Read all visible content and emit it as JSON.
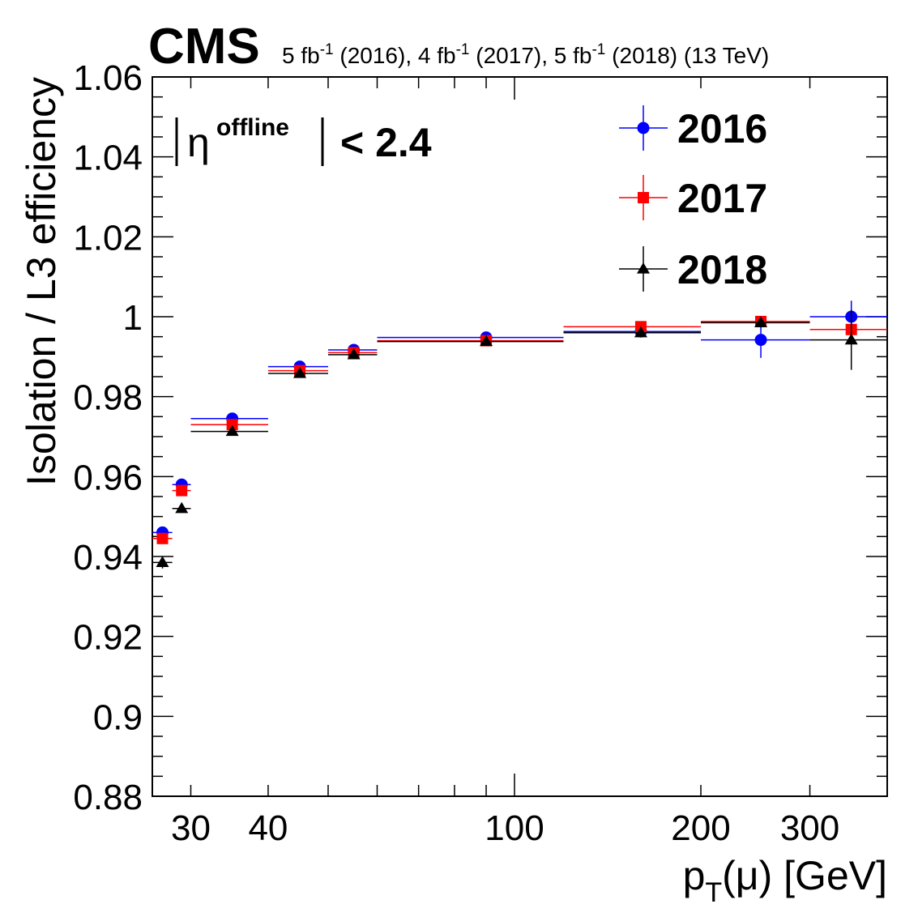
{
  "header": {
    "experiment": "CMS",
    "lumi_parts": [
      {
        "lumi": "5 fb",
        "year": " (2016), "
      },
      {
        "lumi": "4 fb",
        "year": " (2017), "
      },
      {
        "lumi": "5 fb",
        "year": " (2018) (13 TeV)"
      }
    ],
    "lumi_exp": "-1"
  },
  "annotation": {
    "symbol": "η",
    "superscript": "offline",
    "cut": "< 2.4"
  },
  "chart_data": {
    "type": "scatter",
    "xlabel": {
      "main": "p",
      "sub": "T",
      "rest": "(μ) [GeV]"
    },
    "ylabel": "Isolation / L3 efficiency",
    "xscale": "log",
    "xlim": [
      26,
      400
    ],
    "ylim": [
      0.88,
      1.06
    ],
    "x_tick_labels": [
      {
        "value": 30,
        "label": "30"
      },
      {
        "value": 40,
        "label": "40"
      },
      {
        "value": 100,
        "label": "100"
      },
      {
        "value": 200,
        "label": "200"
      },
      {
        "value": 300,
        "label": "300"
      }
    ],
    "y_tick_labels": [
      {
        "value": 0.88,
        "label": "0.88"
      },
      {
        "value": 0.9,
        "label": "0.9"
      },
      {
        "value": 0.92,
        "label": "0.92"
      },
      {
        "value": 0.94,
        "label": "0.94"
      },
      {
        "value": 0.96,
        "label": "0.96"
      },
      {
        "value": 0.98,
        "label": "0.98"
      },
      {
        "value": 1.0,
        "label": "1"
      },
      {
        "value": 1.02,
        "label": "1.02"
      },
      {
        "value": 1.04,
        "label": "1.04"
      },
      {
        "value": 1.06,
        "label": "1.06"
      }
    ],
    "legend_position": "top-right",
    "series": [
      {
        "name": "2016",
        "color": "#0000ff",
        "marker": "circle",
        "points": [
          {
            "x": 27,
            "xlo": 26,
            "xhi": 28,
            "y": 0.946,
            "err": 0.0008
          },
          {
            "x": 29,
            "xlo": 28,
            "xhi": 30,
            "y": 0.958,
            "err": 0.0007
          },
          {
            "x": 35,
            "xlo": 30,
            "xhi": 40,
            "y": 0.9745,
            "err": 0.0005
          },
          {
            "x": 45,
            "xlo": 40,
            "xhi": 50,
            "y": 0.9875,
            "err": 0.0004
          },
          {
            "x": 55,
            "xlo": 50,
            "xhi": 60,
            "y": 0.9917,
            "err": 0.0004
          },
          {
            "x": 90,
            "xlo": 60,
            "xhi": 120,
            "y": 0.9948,
            "err": 0.0003
          },
          {
            "x": 160,
            "xlo": 120,
            "xhi": 200,
            "y": 0.9963,
            "err": 0.0008
          },
          {
            "x": 250,
            "xlo": 200,
            "xhi": 300,
            "y": 0.9942,
            "err": 0.0045
          },
          {
            "x": 350,
            "xlo": 300,
            "xhi": 400,
            "y": 1.0,
            "err": 0.004
          }
        ]
      },
      {
        "name": "2017",
        "color": "#ff0000",
        "marker": "square",
        "points": [
          {
            "x": 27,
            "xlo": 26,
            "xhi": 28,
            "y": 0.9445,
            "err": 0.0008
          },
          {
            "x": 29,
            "xlo": 28,
            "xhi": 30,
            "y": 0.9565,
            "err": 0.0007
          },
          {
            "x": 35,
            "xlo": 30,
            "xhi": 40,
            "y": 0.973,
            "err": 0.0005
          },
          {
            "x": 45,
            "xlo": 40,
            "xhi": 50,
            "y": 0.9865,
            "err": 0.0004
          },
          {
            "x": 55,
            "xlo": 50,
            "xhi": 60,
            "y": 0.991,
            "err": 0.0004
          },
          {
            "x": 90,
            "xlo": 60,
            "xhi": 120,
            "y": 0.994,
            "err": 0.0003
          },
          {
            "x": 160,
            "xlo": 120,
            "xhi": 200,
            "y": 0.9975,
            "err": 0.0007
          },
          {
            "x": 250,
            "xlo": 200,
            "xhi": 300,
            "y": 0.9988,
            "err": 0.0012
          },
          {
            "x": 350,
            "xlo": 300,
            "xhi": 400,
            "y": 0.9968,
            "err": 0.0015
          }
        ]
      },
      {
        "name": "2018",
        "color": "#000000",
        "marker": "triangle",
        "points": [
          {
            "x": 27,
            "xlo": 26,
            "xhi": 28,
            "y": 0.9385,
            "err": 0.0015
          },
          {
            "x": 29,
            "xlo": 28,
            "xhi": 30,
            "y": 0.952,
            "err": 0.0007
          },
          {
            "x": 35,
            "xlo": 30,
            "xhi": 40,
            "y": 0.9713,
            "err": 0.0005
          },
          {
            "x": 45,
            "xlo": 40,
            "xhi": 50,
            "y": 0.9858,
            "err": 0.0004
          },
          {
            "x": 55,
            "xlo": 50,
            "xhi": 60,
            "y": 0.9905,
            "err": 0.0004
          },
          {
            "x": 90,
            "xlo": 60,
            "xhi": 120,
            "y": 0.9938,
            "err": 0.0003
          },
          {
            "x": 160,
            "xlo": 120,
            "xhi": 200,
            "y": 0.996,
            "err": 0.0006
          },
          {
            "x": 250,
            "xlo": 200,
            "xhi": 300,
            "y": 0.9985,
            "err": 0.0012
          },
          {
            "x": 350,
            "xlo": 300,
            "xhi": 400,
            "y": 0.9942,
            "err": 0.0075
          }
        ]
      }
    ]
  }
}
